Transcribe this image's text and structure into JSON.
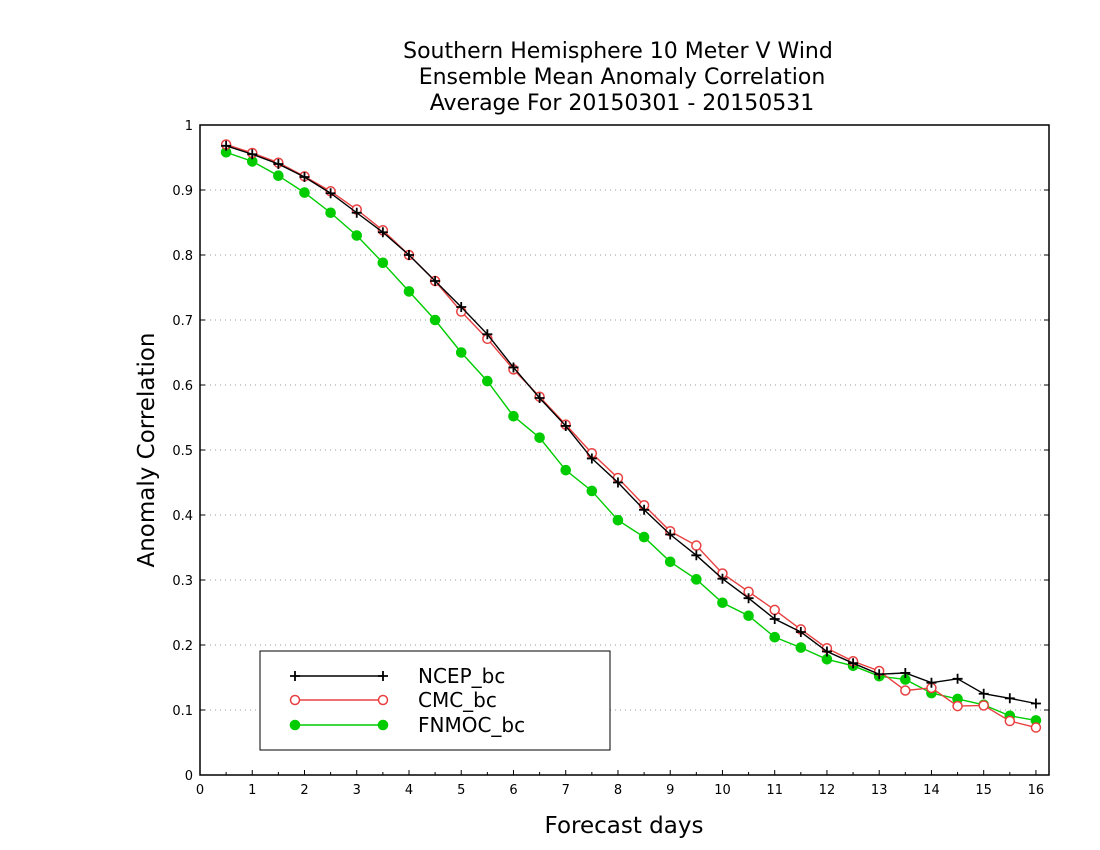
{
  "chart_data": {
    "type": "line",
    "title_lines": [
      "Southern Hemisphere 10 Meter V Wind",
      "Ensemble Mean Anomaly Correlation",
      "Average For 20150301 - 20150531"
    ],
    "xlabel": "Forecast days",
    "ylabel": "Anomaly Correlation",
    "xlim": [
      0,
      16.25
    ],
    "ylim": [
      0,
      1
    ],
    "x_ticks": [
      "0",
      "1",
      "2",
      "3",
      "4",
      "5",
      "6",
      "7",
      "8",
      "9",
      "10",
      "11",
      "12",
      "13",
      "14",
      "15",
      "16"
    ],
    "y_ticks": [
      "0",
      "0.1",
      "0.2",
      "0.3",
      "0.4",
      "0.5",
      "0.6",
      "0.7",
      "0.8",
      "0.9",
      "1"
    ],
    "grid": "horizontal dotted",
    "legend_position": "bottom-left",
    "x": [
      0.5,
      1,
      1.5,
      2,
      2.5,
      3,
      3.5,
      4,
      4.5,
      5,
      5.5,
      6,
      6.5,
      7,
      7.5,
      8,
      8.5,
      9,
      9.5,
      10,
      10.5,
      11,
      11.5,
      12,
      12.5,
      13,
      13.5,
      14,
      14.5,
      15,
      15.5,
      16
    ],
    "series": [
      {
        "name": "NCEP_bc",
        "color": "#000000",
        "marker": "plus",
        "values": [
          0.968,
          0.955,
          0.94,
          0.92,
          0.895,
          0.865,
          0.835,
          0.8,
          0.76,
          0.72,
          0.678,
          0.627,
          0.58,
          0.537,
          0.487,
          0.45,
          0.408,
          0.37,
          0.338,
          0.302,
          0.272,
          0.24,
          0.22,
          0.19,
          0.172,
          0.155,
          0.157,
          0.142,
          0.148,
          0.125,
          0.118,
          0.11
        ]
      },
      {
        "name": "CMC_bc",
        "color": "#e84040",
        "marker": "open-circle",
        "values": [
          0.97,
          0.957,
          0.942,
          0.921,
          0.898,
          0.87,
          0.838,
          0.8,
          0.76,
          0.713,
          0.671,
          0.624,
          0.582,
          0.539,
          0.495,
          0.457,
          0.415,
          0.375,
          0.353,
          0.31,
          0.282,
          0.254,
          0.224,
          0.195,
          0.175,
          0.16,
          0.13,
          0.134,
          0.106,
          0.107,
          0.083,
          0.073
        ]
      },
      {
        "name": "FNMOC_bc",
        "color": "#00cc00",
        "marker": "filled-circle",
        "values": [
          0.958,
          0.944,
          0.922,
          0.896,
          0.865,
          0.83,
          0.788,
          0.744,
          0.7,
          0.65,
          0.606,
          0.552,
          0.519,
          0.469,
          0.437,
          0.392,
          0.366,
          0.328,
          0.301,
          0.265,
          0.245,
          0.212,
          0.196,
          0.178,
          0.168,
          0.152,
          0.147,
          0.126,
          0.117,
          0.108,
          0.091,
          0.084
        ]
      }
    ]
  }
}
